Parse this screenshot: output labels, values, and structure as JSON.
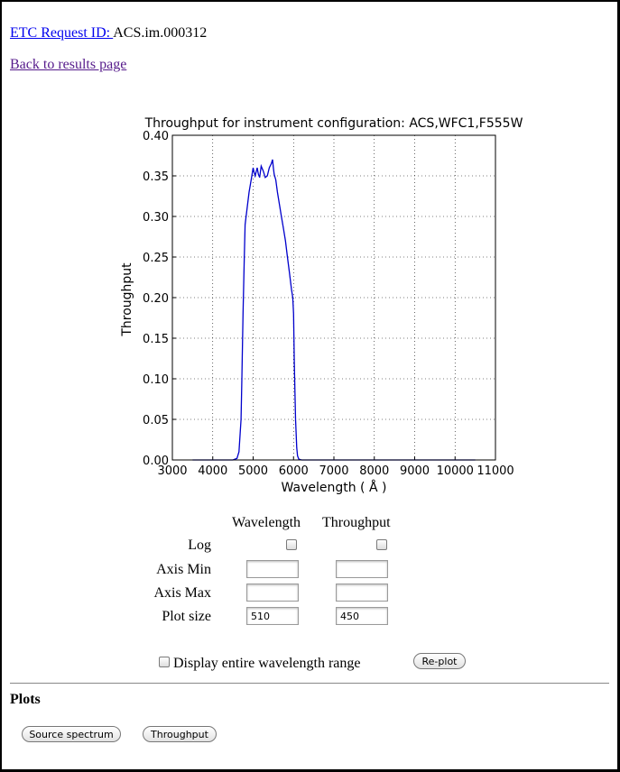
{
  "header": {
    "request_label": "ETC Request ID: ",
    "request_id": "ACS.im.000312",
    "back_link": "Back to results page"
  },
  "chart_data": {
    "type": "line",
    "title": "Throughput for instrument configuration: ACS,WFC1,F555W",
    "xlabel": "Wavelength ( Å )",
    "ylabel": "Throughput",
    "xlim": [
      3000,
      11000
    ],
    "ylim": [
      0,
      0.4
    ],
    "xticks": [
      "3000",
      "4000",
      "5000",
      "6000",
      "7000",
      "8000",
      "9000",
      "10000",
      "11000"
    ],
    "yticks": [
      "0.00",
      "0.05",
      "0.10",
      "0.15",
      "0.20",
      "0.25",
      "0.30",
      "0.35",
      "0.40"
    ],
    "grid": true,
    "color": "#0000cc",
    "series": [
      {
        "x": [
          3500,
          4500,
          4600,
          4650,
          4700,
          4720,
          4750,
          4780,
          4800,
          4850,
          4900,
          4950,
          5000,
          5020,
          5050,
          5100,
          5130,
          5160,
          5200,
          5250,
          5300,
          5350,
          5400,
          5450,
          5480,
          5500,
          5520,
          5560,
          5600,
          5650,
          5700,
          5750,
          5800,
          5850,
          5900,
          5950,
          5980,
          6000,
          6020,
          6050,
          6080,
          6100,
          6130,
          6200,
          6500,
          7000,
          8000,
          9000,
          10000,
          10500
        ],
        "y": [
          0.0,
          0.0,
          0.002,
          0.01,
          0.05,
          0.1,
          0.18,
          0.25,
          0.29,
          0.31,
          0.33,
          0.345,
          0.36,
          0.355,
          0.35,
          0.36,
          0.352,
          0.348,
          0.362,
          0.356,
          0.348,
          0.35,
          0.36,
          0.365,
          0.37,
          0.36,
          0.352,
          0.345,
          0.33,
          0.315,
          0.3,
          0.285,
          0.27,
          0.25,
          0.23,
          0.21,
          0.2,
          0.18,
          0.12,
          0.05,
          0.015,
          0.005,
          0.001,
          0.0,
          0.0,
          0.0,
          0.0,
          0.0,
          0.0,
          0.0
        ]
      }
    ]
  },
  "controls": {
    "col_wavelength": "Wavelength",
    "col_throughput": "Throughput",
    "rows": {
      "log": "Log",
      "axis_min": "Axis Min",
      "axis_max": "Axis Max",
      "plot_size": "Plot size"
    },
    "plot_size_wavelength": "510",
    "plot_size_throughput": "450",
    "display_range_label": "Display entire wavelength range",
    "replot_button": "Re-plot"
  },
  "plots_section": {
    "heading": "Plots",
    "source_spectrum_button": "Source spectrum",
    "throughput_button": "Throughput"
  }
}
